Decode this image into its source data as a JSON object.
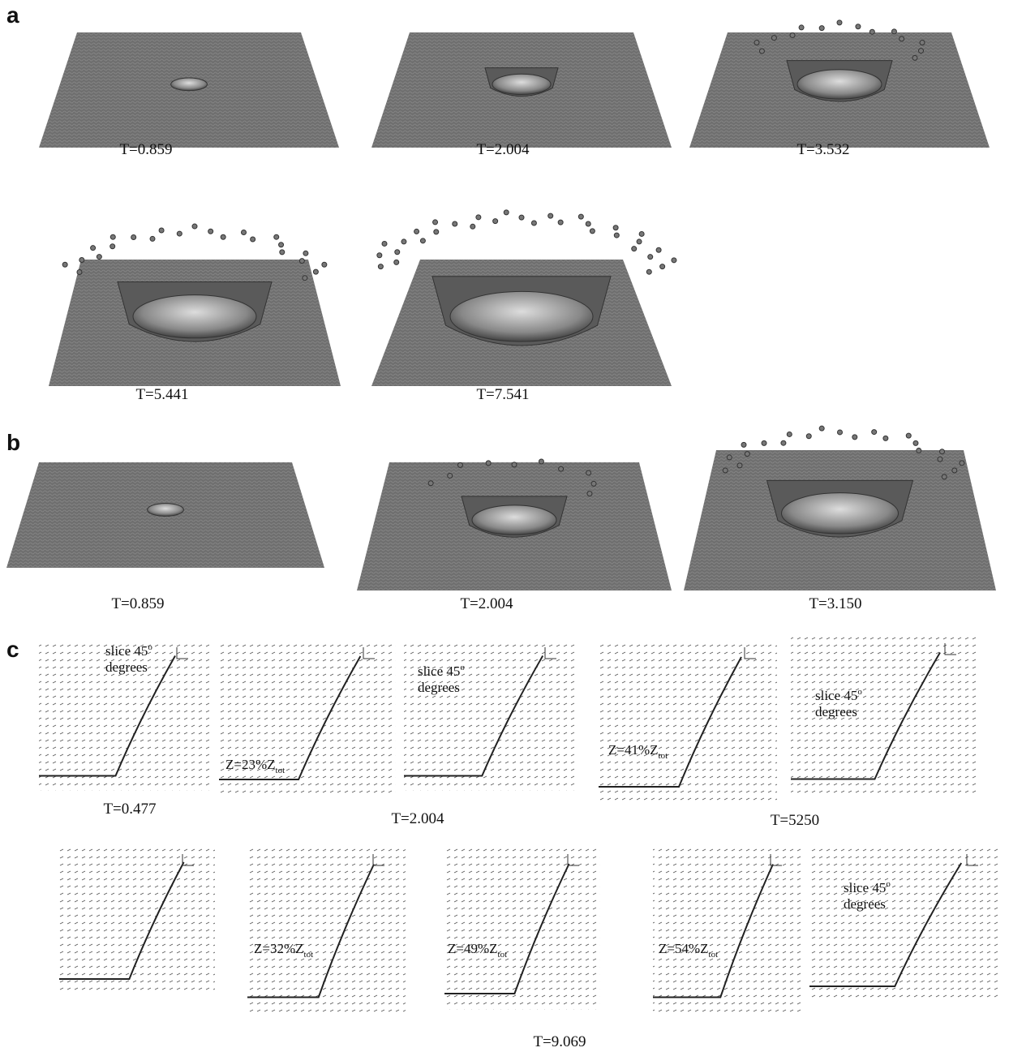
{
  "panels": [
    {
      "label": "a",
      "frames": [
        "T=0.859",
        "T=2.004",
        "T=3.532",
        "T=5.441",
        "T=7.541"
      ]
    },
    {
      "label": "b",
      "frames": [
        "T=0.859",
        "T=2.004",
        "T=3.150"
      ]
    },
    {
      "label": "c",
      "times": [
        "T=0.477",
        "T=2.004",
        "T=5250",
        "T=9.069"
      ],
      "slices": [
        {
          "text": "slice 45",
          "sup": "o",
          "line2": "degrees"
        },
        {
          "text": "slice 45",
          "sup": "o",
          "line2": "degrees"
        },
        {
          "text": "slice 45",
          "sup": "o",
          "line2": "degrees"
        },
        {
          "text": "slice 45",
          "sup": "o",
          "line2": "degrees"
        }
      ],
      "zlabels": [
        {
          "text": "Z=23%Z",
          "sub": "tot"
        },
        {
          "text": "Z=41%Z",
          "sub": "tot"
        },
        {
          "text": "Z=32%Z",
          "sub": "tot"
        },
        {
          "text": "Z=49%Z",
          "sub": "tot"
        },
        {
          "text": "Z=54%Z",
          "sub": "tot"
        }
      ]
    }
  ]
}
